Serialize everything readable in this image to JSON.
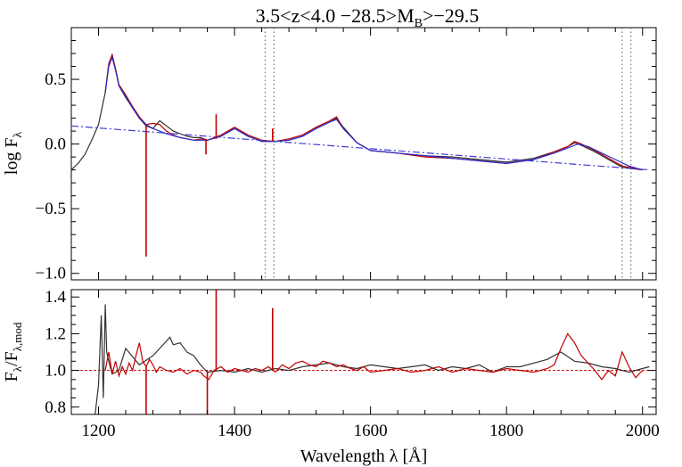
{
  "chart_data": [
    {
      "type": "line",
      "title": "3.5<z<4.0 −28.5>M",
      "title_sub": "B",
      "title_tail": ">−29.5",
      "ylabel": "log F",
      "ylabel_sub": "λ",
      "xlim": [
        1160,
        2020
      ],
      "ylim": [
        -1.05,
        0.9
      ],
      "yticks": [
        -1.0,
        -0.5,
        0.0,
        0.5
      ],
      "ytick_labels": [
        "−1.0",
        "−0.5",
        "0.0",
        "0.5"
      ],
      "vlines_dotted": [
        1445,
        1458,
        1970,
        1983
      ],
      "series": [
        {
          "color": "#333333",
          "x": [
            1160,
            1170,
            1180,
            1190,
            1200,
            1210,
            1215,
            1220,
            1225,
            1230,
            1240,
            1250,
            1260,
            1270,
            1280,
            1290,
            1300,
            1310,
            1320,
            1330,
            1340,
            1350,
            1360,
            1380,
            1400,
            1420,
            1440,
            1460,
            1480,
            1500,
            1520,
            1540,
            1550,
            1560,
            1580,
            1600,
            1640,
            1680,
            1720,
            1760,
            1800,
            1840,
            1870,
            1890,
            1900,
            1910,
            1930,
            1950,
            1970,
            2000
          ],
          "y": [
            -0.2,
            -0.15,
            -0.08,
            0.03,
            0.15,
            0.4,
            0.62,
            0.69,
            0.58,
            0.45,
            0.36,
            0.28,
            0.2,
            0.14,
            0.12,
            0.18,
            0.14,
            0.1,
            0.08,
            0.06,
            0.05,
            0.05,
            0.03,
            0.06,
            0.12,
            0.06,
            0.02,
            0.02,
            0.03,
            0.06,
            0.12,
            0.17,
            0.2,
            0.13,
            0.01,
            -0.05,
            -0.07,
            -0.09,
            -0.1,
            -0.12,
            -0.14,
            -0.11,
            -0.06,
            -0.02,
            0.01,
            -0.01,
            -0.06,
            -0.12,
            -0.18,
            -0.2
          ]
        },
        {
          "color": "#c00000",
          "x": [
            1210,
            1215,
            1220,
            1225,
            1230,
            1240,
            1250,
            1260,
            1270,
            1280,
            1290,
            1300,
            1310,
            1320,
            1330,
            1340,
            1350,
            1360,
            1380,
            1400,
            1420,
            1440,
            1460,
            1480,
            1500,
            1520,
            1540,
            1550,
            1560,
            1580,
            1600,
            1640,
            1680,
            1720,
            1760,
            1800,
            1840,
            1870,
            1890,
            1900,
            1910,
            1930,
            1950,
            1970,
            2000
          ],
          "y": [
            0.4,
            0.62,
            0.69,
            0.58,
            0.46,
            0.38,
            0.29,
            0.21,
            0.15,
            0.16,
            0.15,
            0.1,
            0.07,
            0.05,
            0.04,
            0.03,
            0.04,
            0.03,
            0.07,
            0.13,
            0.07,
            0.03,
            0.02,
            0.04,
            0.07,
            0.13,
            0.18,
            0.21,
            0.12,
            0.01,
            -0.05,
            -0.07,
            -0.1,
            -0.11,
            -0.13,
            -0.15,
            -0.12,
            -0.06,
            -0.02,
            0.02,
            0.0,
            -0.05,
            -0.11,
            -0.17,
            -0.2
          ]
        },
        {
          "color": "#2a2ad0",
          "x": [
            1210,
            1215,
            1220,
            1225,
            1230,
            1240,
            1250,
            1260,
            1270,
            1280,
            1300,
            1320,
            1340,
            1360,
            1380,
            1400,
            1420,
            1440,
            1460,
            1480,
            1500,
            1520,
            1540,
            1550,
            1560,
            1580,
            1600,
            1640,
            1680,
            1720,
            1760,
            1800,
            1840,
            1870,
            1890,
            1905,
            1920,
            1940,
            1960,
            1980,
            2000
          ],
          "y": [
            0.4,
            0.6,
            0.67,
            0.57,
            0.45,
            0.37,
            0.28,
            0.2,
            0.15,
            0.12,
            0.08,
            0.05,
            0.03,
            0.03,
            0.06,
            0.12,
            0.06,
            0.02,
            0.02,
            0.03,
            0.06,
            0.12,
            0.17,
            0.19,
            0.12,
            0.01,
            -0.05,
            -0.07,
            -0.09,
            -0.11,
            -0.13,
            -0.15,
            -0.12,
            -0.07,
            -0.03,
            0.0,
            -0.02,
            -0.07,
            -0.12,
            -0.17,
            -0.2
          ]
        },
        {
          "color": "#3b3bd6",
          "dash": true,
          "x": [
            1160,
            2010
          ],
          "y": [
            0.14,
            -0.2
          ]
        }
      ],
      "spikes": [
        {
          "x": 1270,
          "y0": 0.14,
          "y1": -0.87
        },
        {
          "x": 1358,
          "y0": 0.04,
          "y1": -0.08
        },
        {
          "x": 1373,
          "y0": 0.04,
          "y1": 0.23
        },
        {
          "x": 1456,
          "y0": 0.02,
          "y1": 0.12
        }
      ]
    },
    {
      "type": "line",
      "xlabel": "Wavelength λ [Å]",
      "ylabel": "F",
      "ylabel_sub": "λ",
      "ylabel_mid": "/F",
      "ylabel_sub2": "λ,mod",
      "xlim": [
        1160,
        2020
      ],
      "ylim": [
        0.76,
        1.44
      ],
      "xticks": [
        1200,
        1400,
        1600,
        1800,
        2000
      ],
      "xtick_labels": [
        "1200",
        "1400",
        "1600",
        "1800",
        "2000"
      ],
      "yticks": [
        0.8,
        1.0,
        1.2,
        1.4
      ],
      "ytick_labels": [
        "0.8",
        "1.0",
        "1.2",
        "1.4"
      ],
      "reference_line": {
        "y": 1.0,
        "color": "#c00000",
        "dash": true
      },
      "series": [
        {
          "color": "#333333",
          "x": [
            1195,
            1200,
            1204,
            1207,
            1210,
            1212,
            1215,
            1220,
            1230,
            1240,
            1260,
            1280,
            1290,
            1300,
            1305,
            1310,
            1320,
            1330,
            1340,
            1350,
            1360,
            1380,
            1400,
            1420,
            1440,
            1460,
            1480,
            1500,
            1520,
            1540,
            1560,
            1580,
            1600,
            1620,
            1640,
            1660,
            1680,
            1700,
            1720,
            1740,
            1760,
            1780,
            1800,
            1820,
            1840,
            1860,
            1880,
            1900,
            1920,
            1940,
            1960,
            1980,
            2000,
            2010
          ],
          "y": [
            0.76,
            0.92,
            1.3,
            0.85,
            1.36,
            1.1,
            1.05,
            0.98,
            1.0,
            1.12,
            1.03,
            1.08,
            1.12,
            1.16,
            1.18,
            1.14,
            1.15,
            1.1,
            1.08,
            1.03,
            0.99,
            1.0,
            0.99,
            1.01,
            0.99,
            1.01,
            1.0,
            1.02,
            1.03,
            1.04,
            1.02,
            1.01,
            1.03,
            1.02,
            1.01,
            1.02,
            1.03,
            1.0,
            1.02,
            1.01,
            1.03,
            0.99,
            1.02,
            1.02,
            1.04,
            1.06,
            1.1,
            1.05,
            1.04,
            1.02,
            1.01,
            0.99,
            1.01,
            1.02
          ]
        },
        {
          "color": "#c00000",
          "x": [
            1210,
            1215,
            1220,
            1225,
            1230,
            1235,
            1240,
            1245,
            1250,
            1255,
            1260,
            1265,
            1270,
            1275,
            1280,
            1285,
            1290,
            1300,
            1310,
            1320,
            1330,
            1340,
            1350,
            1355,
            1362,
            1370,
            1380,
            1390,
            1400,
            1410,
            1420,
            1430,
            1440,
            1450,
            1460,
            1470,
            1480,
            1490,
            1500,
            1510,
            1520,
            1530,
            1540,
            1550,
            1560,
            1570,
            1580,
            1590,
            1600,
            1620,
            1640,
            1660,
            1680,
            1700,
            1720,
            1740,
            1760,
            1780,
            1800,
            1820,
            1840,
            1860,
            1870,
            1880,
            1890,
            1900,
            1910,
            1920,
            1930,
            1940,
            1950,
            1960,
            1970,
            1980,
            1990,
            2000
          ],
          "y": [
            1.0,
            1.1,
            0.98,
            1.05,
            0.97,
            1.02,
            0.98,
            1.04,
            1.0,
            1.08,
            1.15,
            1.05,
            1.02,
            1.06,
            1.03,
            0.99,
            1.02,
            1.0,
            0.99,
            1.01,
            0.98,
            1.0,
            0.99,
            0.97,
            0.95,
            1.0,
            1.02,
            0.99,
            1.01,
            1.0,
            0.99,
            1.01,
            1.0,
            1.02,
            0.99,
            1.03,
            1.01,
            1.04,
            1.05,
            1.03,
            1.02,
            1.05,
            1.04,
            1.02,
            1.03,
            1.01,
            1.0,
            1.02,
            0.99,
            1.0,
            1.01,
            0.99,
            1.0,
            1.02,
            0.99,
            1.01,
            1.0,
            0.99,
            1.01,
            1.0,
            0.99,
            1.01,
            1.03,
            1.12,
            1.2,
            1.15,
            1.08,
            1.04,
            1.0,
            0.95,
            1.0,
            0.97,
            1.1,
            1.02,
            0.96,
            1.0
          ]
        }
      ],
      "spikes": [
        {
          "x": 1270,
          "y0": 1.02,
          "y1": 0.76
        },
        {
          "x": 1360,
          "y0": 1.0,
          "y1": 0.76
        },
        {
          "x": 1373,
          "y0": 1.0,
          "y1": 1.44
        },
        {
          "x": 1456,
          "y0": 1.0,
          "y1": 1.34
        }
      ]
    }
  ]
}
